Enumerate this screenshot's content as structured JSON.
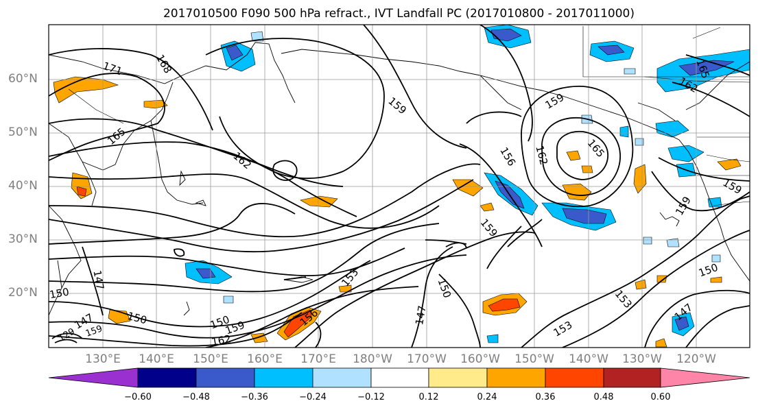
{
  "title": "2017010500 F090 500 hPa refract., IVT Landfall PC (2017010800 - 2017011000)",
  "lat_labels": [
    "60°N",
    "50°N",
    "40°N",
    "30°N",
    "20°N"
  ],
  "lon_labels": [
    "130°E",
    "140°E",
    "150°E",
    "160°E",
    "170°E",
    "180°W",
    "170°W",
    "160°W",
    "150°W",
    "140°W",
    "130°W",
    "120°W"
  ],
  "contour_labels": [
    "171",
    "168",
    "165",
    "162",
    "159",
    "159",
    "156",
    "162",
    "165",
    "162",
    "165",
    "159",
    "159",
    "159",
    "153",
    "150",
    "147",
    "150",
    "147",
    "153",
    "147",
    "150",
    "159",
    "156",
    "162",
    "153",
    "150",
    "150",
    "147",
    "129",
    "159"
  ],
  "colorbar": {
    "ticks": [
      "−0.60",
      "−0.48",
      "−0.36",
      "−0.24",
      "−0.12",
      "0.12",
      "0.24",
      "0.36",
      "0.48",
      "0.60"
    ],
    "colors": [
      "#9b30d0",
      "#00008b",
      "#3a5acc",
      "#00bfff",
      "#b0e2ff",
      "#ffffff",
      "#ffeb8a",
      "#ffa500",
      "#ff4500",
      "#b22222",
      "#ff85a8"
    ]
  },
  "colors": {
    "land_outline": "#000000",
    "grid": "#999999",
    "axis_label": "#7f7f7f"
  }
}
